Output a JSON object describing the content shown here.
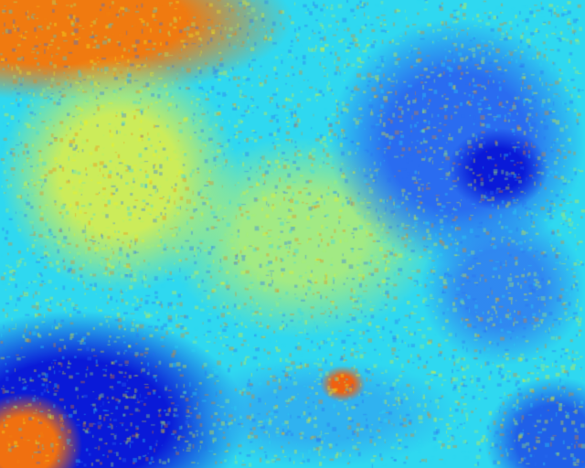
{
  "image": {
    "kind": "false-color thermal aerial view of forest canopy",
    "palette": {
      "cold_deep": "#0a1ad8",
      "cold": "#2a6cf0",
      "cool": "#2fd8f0",
      "mild": "#a8f070",
      "warm": "#f0f020",
      "hot": "#f08010",
      "hottest": "#e03010"
    }
  }
}
